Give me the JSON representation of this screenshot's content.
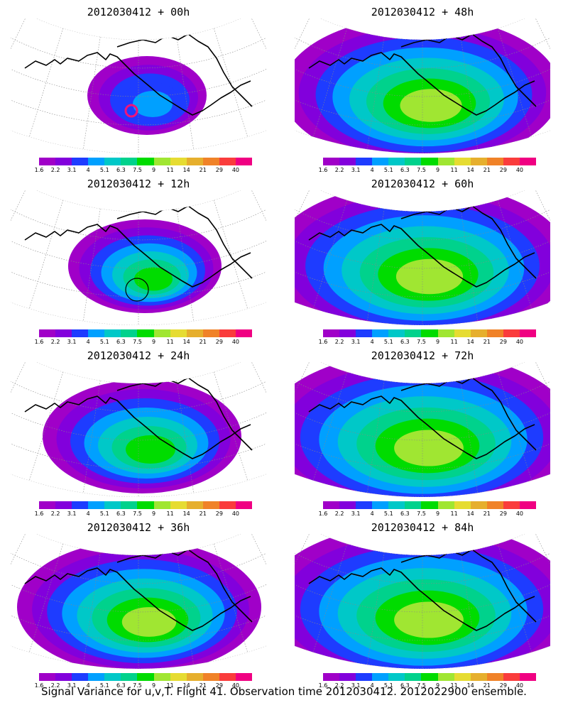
{
  "colorbar": {
    "ticks": [
      "1.6",
      "2.2",
      "3.1",
      "4",
      "5.1",
      "6.3",
      "7.5",
      "9",
      "11",
      "14",
      "21",
      "29",
      "40"
    ],
    "colors": [
      "#a000c8",
      "#8200dc",
      "#1e3cff",
      "#00a0ff",
      "#00c8c8",
      "#00d28c",
      "#00dc00",
      "#a0e632",
      "#e6dc32",
      "#e6af2d",
      "#f08228",
      "#fa3c3c",
      "#f00082"
    ]
  },
  "panels": [
    {
      "title": "2012030412 + 00h",
      "extent": 0.15,
      "intensity": 0.4,
      "marker": "ring-magenta"
    },
    {
      "title": "2012030412 + 12h",
      "extent": 0.3,
      "intensity": 0.7,
      "marker": "ring-black"
    },
    {
      "title": "2012030412 + 24h",
      "extent": 0.5,
      "intensity": 0.7,
      "marker": ""
    },
    {
      "title": "2012030412 + 36h",
      "extent": 0.7,
      "intensity": 0.75,
      "marker": ""
    },
    {
      "title": "2012030412 + 48h",
      "extent": 0.85,
      "intensity": 0.8,
      "marker": ""
    },
    {
      "title": "2012030412 + 60h",
      "extent": 0.95,
      "intensity": 0.8,
      "marker": ""
    },
    {
      "title": "2012030412 + 72h",
      "extent": 1.0,
      "intensity": 0.82,
      "marker": ""
    },
    {
      "title": "2012030412 + 84h",
      "extent": 1.0,
      "intensity": 0.85,
      "marker": ""
    }
  ],
  "caption": "Signal Variance for u,v,T. Flight 41. Observation time 2012030412. 2012022900 ensemble."
}
